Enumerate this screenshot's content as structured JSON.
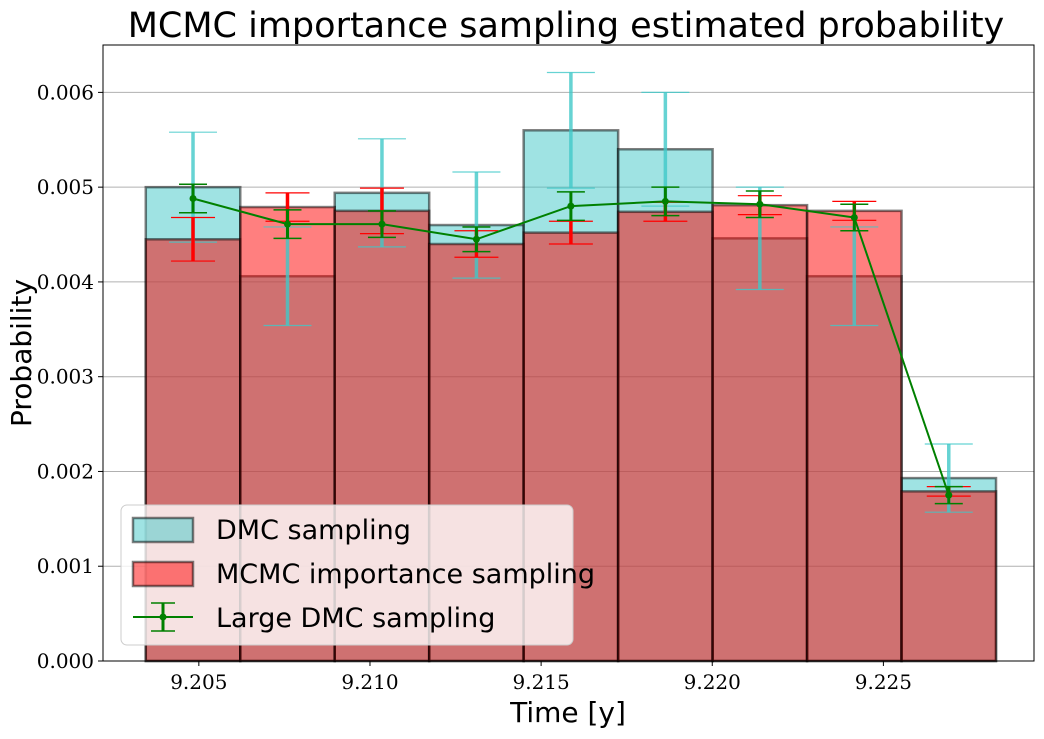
{
  "chart_data": {
    "type": "bar",
    "title": "MCMC importance sampling estimated probability",
    "xlabel": "Time [y]",
    "ylabel": "Probability",
    "xlim": [
      9.2022,
      9.2294
    ],
    "ylim": [
      0,
      0.0065
    ],
    "x_ticks": [
      9.205,
      9.21,
      9.215,
      9.22,
      9.225
    ],
    "x_tick_labels": [
      "9.205",
      "9.210",
      "9.215",
      "9.220",
      "9.225"
    ],
    "y_ticks": [
      0,
      0.001,
      0.002,
      0.003,
      0.004,
      0.005,
      0.006
    ],
    "y_tick_labels": [
      "0.000",
      "0.001",
      "0.002",
      "0.003",
      "0.004",
      "0.005",
      "0.006"
    ],
    "grid": "y",
    "legend_position": "lower-left",
    "bin_edges": [
      9.20345,
      9.20621,
      9.20897,
      9.21173,
      9.21449,
      9.21725,
      9.22001,
      9.22277,
      9.22553,
      9.22829
    ],
    "bin_centers": [
      9.20483,
      9.20759,
      9.21035,
      9.21311,
      9.21587,
      9.21863,
      9.22139,
      9.22415,
      9.22691
    ],
    "series": [
      {
        "name": "DMC sampling",
        "kind": "bar",
        "color": "#40c8c8",
        "values": [
          0.005,
          0.00406,
          0.00494,
          0.0046,
          0.0056,
          0.0054,
          0.00446,
          0.00406,
          0.00193
        ],
        "errors": [
          0.00058,
          0.00052,
          0.00057,
          0.00056,
          0.00061,
          0.0006,
          0.00054,
          0.00052,
          0.00036
        ]
      },
      {
        "name": "MCMC importance sampling",
        "kind": "bar",
        "color": "#ff0000",
        "values": [
          0.00445,
          0.00479,
          0.00475,
          0.0044,
          0.00452,
          0.00474,
          0.00481,
          0.00475,
          0.00179
        ],
        "errors": [
          0.00023,
          0.00015,
          0.00024,
          0.00014,
          0.00012,
          0.0001,
          0.0001,
          0.0001,
          5e-05
        ]
      },
      {
        "name": "Large DMC sampling",
        "kind": "line",
        "color": "#008000",
        "values": [
          0.00488,
          0.00461,
          0.00461,
          0.00445,
          0.0048,
          0.00485,
          0.00482,
          0.00468,
          0.00175
        ],
        "errors": [
          0.00015,
          0.00015,
          0.00014,
          0.00013,
          0.00015,
          0.00015,
          0.00014,
          0.00014,
          9e-05
        ]
      }
    ]
  }
}
